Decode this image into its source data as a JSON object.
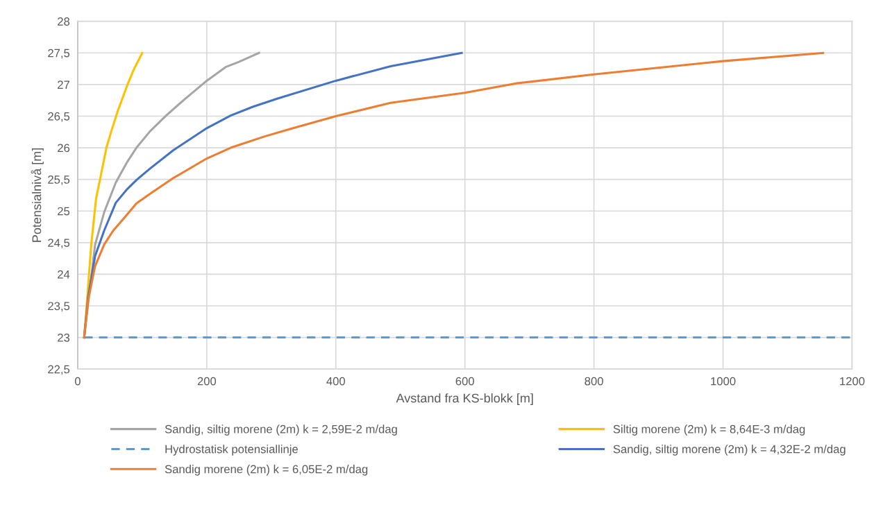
{
  "chart_data": {
    "type": "line",
    "xlabel": "Avstand fra KS-blokk [m]",
    "ylabel": "Potensialnivå [m]",
    "xlim": [
      0,
      1200
    ],
    "xticks": [
      0,
      200,
      400,
      600,
      800,
      1000,
      1200
    ],
    "ylim": [
      22.5,
      28
    ],
    "yticks": [
      {
        "value": 22.5,
        "label": "22,5"
      },
      23,
      {
        "value": 23.5,
        "label": "23,5"
      },
      24,
      {
        "value": 24.5,
        "label": "24,5"
      },
      25,
      {
        "value": 25.5,
        "label": "25,5"
      },
      26,
      {
        "value": 26.5,
        "label": "26,5"
      },
      27,
      {
        "value": 27.5,
        "label": "27,5"
      },
      28
    ],
    "grid": true,
    "legend": "bottom",
    "marker": "none",
    "series": [
      {
        "name": "Sandig, siltig morene (2m) k = 2,59E-2 m/dag",
        "color": "#a5a5a5",
        "line_style": "solid",
        "x": [
          10,
          27,
          41,
          59,
          77,
          91,
          112,
          137,
          166,
          200,
          230,
          250,
          281
        ],
        "values": [
          23,
          24.47,
          24.98,
          25.45,
          25.78,
          26.0,
          26.26,
          26.51,
          26.77,
          27.06,
          27.28,
          27.36,
          27.5
        ]
      },
      {
        "name": "Siltig morene (2m) k = 8,64E-3 m/dag",
        "color": "#ffc000",
        "line_style": "solid",
        "x": [
          10,
          14,
          21,
          28.5,
          36,
          44.5,
          52,
          62,
          76.5,
          87,
          100
        ],
        "values": [
          23,
          23.52,
          24.47,
          25.2,
          25.57,
          26.0,
          26.26,
          26.58,
          26.98,
          27.24,
          27.5
        ]
      },
      {
        "name": "Hydrostatisk potensiallinje",
        "color": "#5b9bd5",
        "line_style": "dashed",
        "x": [
          10,
          1200
        ],
        "values": [
          23,
          23
        ]
      },
      {
        "name": "Sandig, siltig morene (2m) k = 4,32E-2 m/dag",
        "color": "#4472c4",
        "line_style": "solid",
        "x": [
          10,
          16,
          27,
          41,
          59,
          77,
          91,
          112,
          148,
          200,
          237,
          272,
          310,
          400,
          485,
          595
        ],
        "values": [
          23,
          23.63,
          24.29,
          24.69,
          25.13,
          25.35,
          25.49,
          25.67,
          25.96,
          26.31,
          26.51,
          26.65,
          26.78,
          27.06,
          27.29,
          27.5
        ]
      },
      {
        "name": "Sandig morene (2m) k = 6,05E-2 m/dag",
        "color": "#ed7d31",
        "line_style": "solid",
        "x": [
          10,
          16,
          27,
          41,
          55,
          73,
          91,
          112,
          148,
          200,
          237,
          290,
          330,
          400,
          485,
          600,
          681,
          800,
          1000,
          1155
        ],
        "values": [
          23,
          23.58,
          24.13,
          24.47,
          24.69,
          24.9,
          25.12,
          25.27,
          25.52,
          25.83,
          26.0,
          26.18,
          26.3,
          26.5,
          26.71,
          26.87,
          27.02,
          27.16,
          27.37,
          27.5
        ]
      }
    ]
  }
}
